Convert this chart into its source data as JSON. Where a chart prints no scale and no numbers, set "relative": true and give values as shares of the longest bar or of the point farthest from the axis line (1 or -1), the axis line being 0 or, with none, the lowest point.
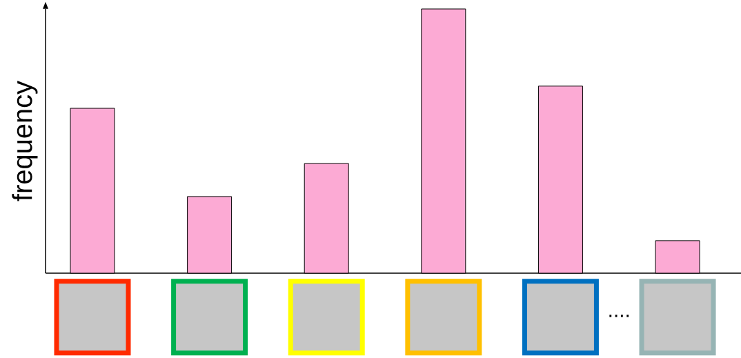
{
  "chart_data": {
    "type": "bar",
    "relative": true,
    "ylabel": "frequency",
    "categories": [
      null,
      null,
      null,
      null,
      null,
      null
    ],
    "values": [
      0.624,
      0.29,
      0.415,
      1,
      0.708,
      0.123
    ],
    "annotations": [
      "...."
    ],
    "color": "#fcaad4"
  }
}
